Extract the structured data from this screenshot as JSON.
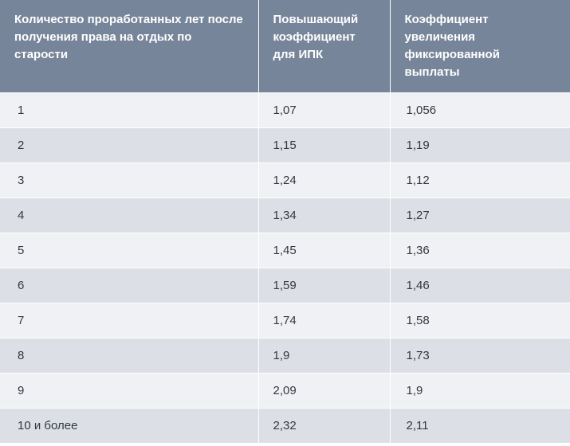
{
  "table": {
    "headers": [
      "Количество проработанных лет после получения права на отдых по старости",
      "Повышающий коэффициент для ИПК",
      "Коэффициент увеличения фиксированной выплаты"
    ],
    "rows": [
      [
        "1",
        "1,07",
        "1,056"
      ],
      [
        "2",
        "1,15",
        "1,19"
      ],
      [
        "3",
        "1,24",
        "1,12"
      ],
      [
        "4",
        "1,34",
        "1,27"
      ],
      [
        "5",
        "1,45",
        "1,36"
      ],
      [
        "6",
        "1,59",
        "1,46"
      ],
      [
        "7",
        "1,74",
        "1,58"
      ],
      [
        "8",
        "1,9",
        "1,73"
      ],
      [
        "9",
        "2,09",
        "1,9"
      ],
      [
        "10 и более",
        "2,32",
        "2,11"
      ]
    ]
  },
  "colors": {
    "header_bg": "#77859a",
    "row_light": "#f0f1f4",
    "row_dark": "#dcdfe5"
  }
}
